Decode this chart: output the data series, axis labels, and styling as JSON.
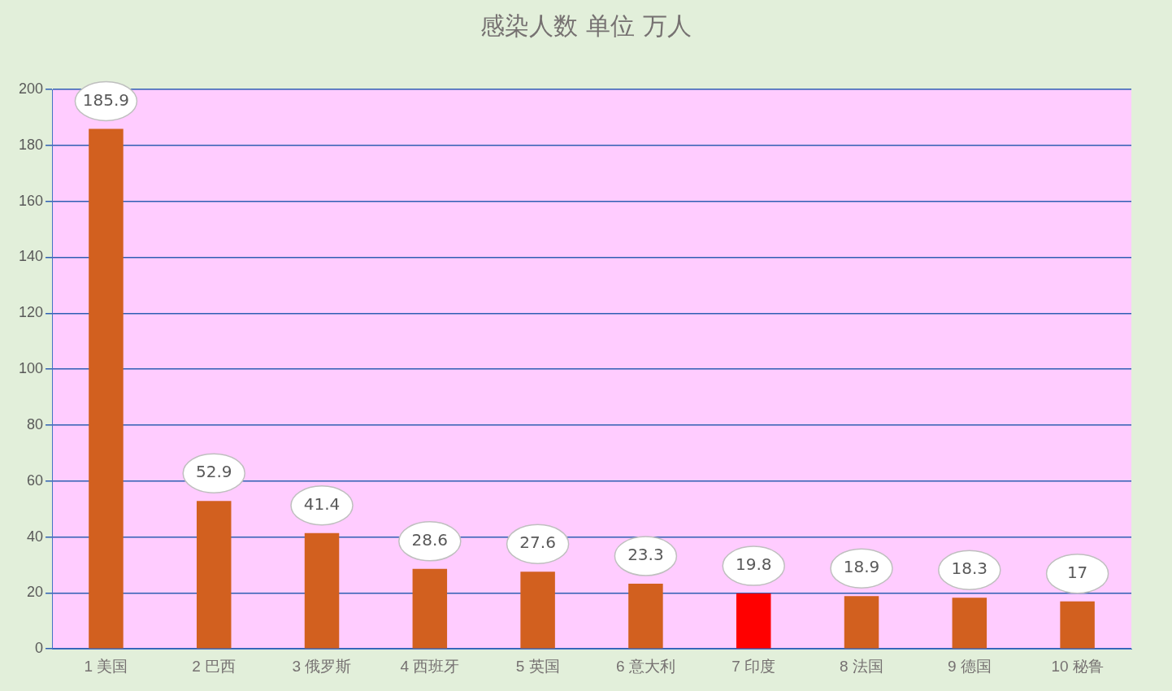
{
  "chart_data": {
    "type": "bar",
    "title": "感染人数 单位 万人",
    "categories": [
      "1 美国",
      "2 巴西",
      "3 俄罗斯",
      "4 西班牙",
      "5 英国",
      "6 意大利",
      "7 印度",
      "8 法国",
      "9 德国",
      "10 秘鲁"
    ],
    "values": [
      185.9,
      52.9,
      41.4,
      28.6,
      27.6,
      23.3,
      19.8,
      18.9,
      18.3,
      17
    ],
    "colors": [
      "#d2601f",
      "#d2601f",
      "#d2601f",
      "#d2601f",
      "#d2601f",
      "#d2601f",
      "#ff0000",
      "#d2601f",
      "#d2601f",
      "#d2601f"
    ],
    "ylim": [
      0,
      200
    ],
    "yticks": [
      0,
      20,
      40,
      60,
      80,
      100,
      120,
      140,
      160,
      180,
      200
    ],
    "grid": "y",
    "legend": false,
    "data_labels": true
  }
}
